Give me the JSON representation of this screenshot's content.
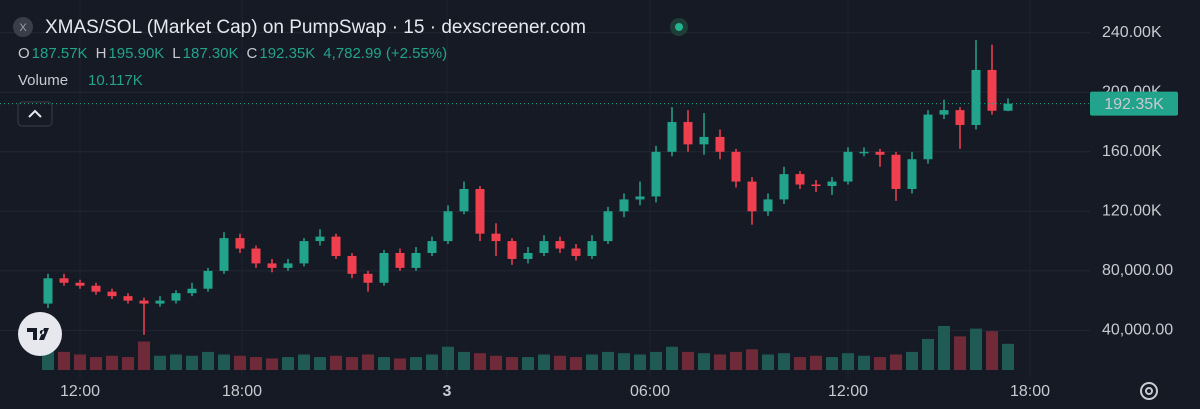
{
  "chart_data": {
    "type": "candlestick",
    "title": "XMAS/SOL (Market Cap) on PumpSwap · 15 · dexscreener.com",
    "icon_letter": "X",
    "ohlc_legend": [
      {
        "key": "O",
        "value": "187.57K"
      },
      {
        "key": "H",
        "value": "195.90K"
      },
      {
        "key": "L",
        "value": "187.30K"
      },
      {
        "key": "C",
        "value": "192.35K"
      }
    ],
    "change": "4,782.99 (+2.55%)",
    "volume_title": "Volume",
    "volume_value": "10.117K",
    "last_price_label": "192.35K",
    "last_price": 192350,
    "up_color": "#22a38b",
    "down_color": "#f0404f",
    "up_volume_color": "#1f5a55",
    "down_volume_color": "#6e2a36",
    "ylim": [
      8000,
      262000
    ],
    "yticks": [
      {
        "value": 40000,
        "label": "40,000.00"
      },
      {
        "value": 80000,
        "label": "80,000.00"
      },
      {
        "value": 120000,
        "label": "120.00K"
      },
      {
        "value": 160000,
        "label": "160.00K"
      },
      {
        "value": 200000,
        "label": "200.00K"
      },
      {
        "value": 240000,
        "label": "240.00K"
      }
    ],
    "xtick_labels": [
      "12:00",
      "18:00",
      "3",
      "06:00",
      "12:00",
      "18:00"
    ],
    "open": [
      58000,
      75000,
      72000,
      70000,
      66000,
      63000,
      60000,
      58000,
      60000,
      65000,
      68000,
      80000,
      102000,
      95000,
      85000,
      82000,
      85000,
      100000,
      103000,
      90000,
      78000,
      72000,
      92000,
      82000,
      92000,
      100000,
      120000,
      135000,
      105000,
      100000,
      88000,
      92000,
      100000,
      95000,
      90000,
      100000,
      120000,
      128000,
      130000,
      160000,
      180000,
      165000,
      170000,
      160000,
      140000,
      120000,
      128000,
      145000,
      138000,
      137000,
      140000,
      160000,
      160000,
      158000,
      135000,
      155000,
      185000,
      188000,
      178000,
      215000,
      187570
    ],
    "high": [
      78000,
      78000,
      74000,
      72000,
      68000,
      65000,
      62000,
      63000,
      67000,
      72000,
      82000,
      106000,
      105000,
      97000,
      88000,
      88000,
      102000,
      108000,
      105000,
      92000,
      80000,
      94000,
      95000,
      96000,
      103000,
      124000,
      140000,
      137000,
      112000,
      102000,
      96000,
      104000,
      103000,
      98000,
      104000,
      123000,
      132000,
      140000,
      164000,
      190000,
      188000,
      186000,
      175000,
      162000,
      143000,
      132000,
      150000,
      147000,
      141000,
      143000,
      163000,
      163000,
      162000,
      160000,
      160000,
      188000,
      195000,
      190000,
      235000,
      232000,
      195900
    ],
    "low": [
      55000,
      70000,
      68000,
      64000,
      61000,
      58000,
      37000,
      56000,
      58000,
      63000,
      66000,
      78000,
      92000,
      82000,
      79000,
      80000,
      83000,
      97000,
      88000,
      75000,
      66000,
      70000,
      80000,
      80000,
      90000,
      98000,
      118000,
      100000,
      90000,
      84000,
      85000,
      90000,
      92000,
      87000,
      88000,
      98000,
      116000,
      124000,
      126000,
      157000,
      160000,
      158000,
      155000,
      136000,
      111000,
      117000,
      125000,
      135000,
      133000,
      131000,
      138000,
      157000,
      150000,
      127000,
      132000,
      152000,
      182000,
      162000,
      175000,
      185000,
      187300
    ],
    "close": [
      75000,
      72000,
      70000,
      66000,
      63000,
      60000,
      58000,
      60000,
      65000,
      68000,
      80000,
      102000,
      95000,
      85000,
      82000,
      85000,
      100000,
      103000,
      90000,
      78000,
      72000,
      92000,
      82000,
      92000,
      100000,
      120000,
      135000,
      105000,
      100000,
      88000,
      92000,
      100000,
      95000,
      90000,
      100000,
      120000,
      128000,
      130000,
      160000,
      180000,
      165000,
      170000,
      160000,
      140000,
      120000,
      128000,
      145000,
      138000,
      137000,
      140000,
      160000,
      160000,
      158000,
      135000,
      155000,
      185000,
      188000,
      178000,
      215000,
      187570,
      192350
    ],
    "volume": [
      9000,
      7000,
      6000,
      5000,
      5500,
      5000,
      11000,
      5500,
      6000,
      5500,
      7000,
      6000,
      5500,
      5000,
      4500,
      5000,
      6000,
      5000,
      5500,
      5000,
      6000,
      5000,
      4500,
      5000,
      6000,
      9000,
      7000,
      6500,
      5500,
      5000,
      5000,
      6000,
      5500,
      5000,
      6000,
      7000,
      6500,
      6000,
      7000,
      9000,
      7000,
      6500,
      6000,
      7000,
      8000,
      6000,
      6500,
      5000,
      5500,
      5000,
      6500,
      5500,
      5000,
      6000,
      7000,
      12000,
      17000,
      13000,
      16000,
      15000,
      10117
    ]
  }
}
